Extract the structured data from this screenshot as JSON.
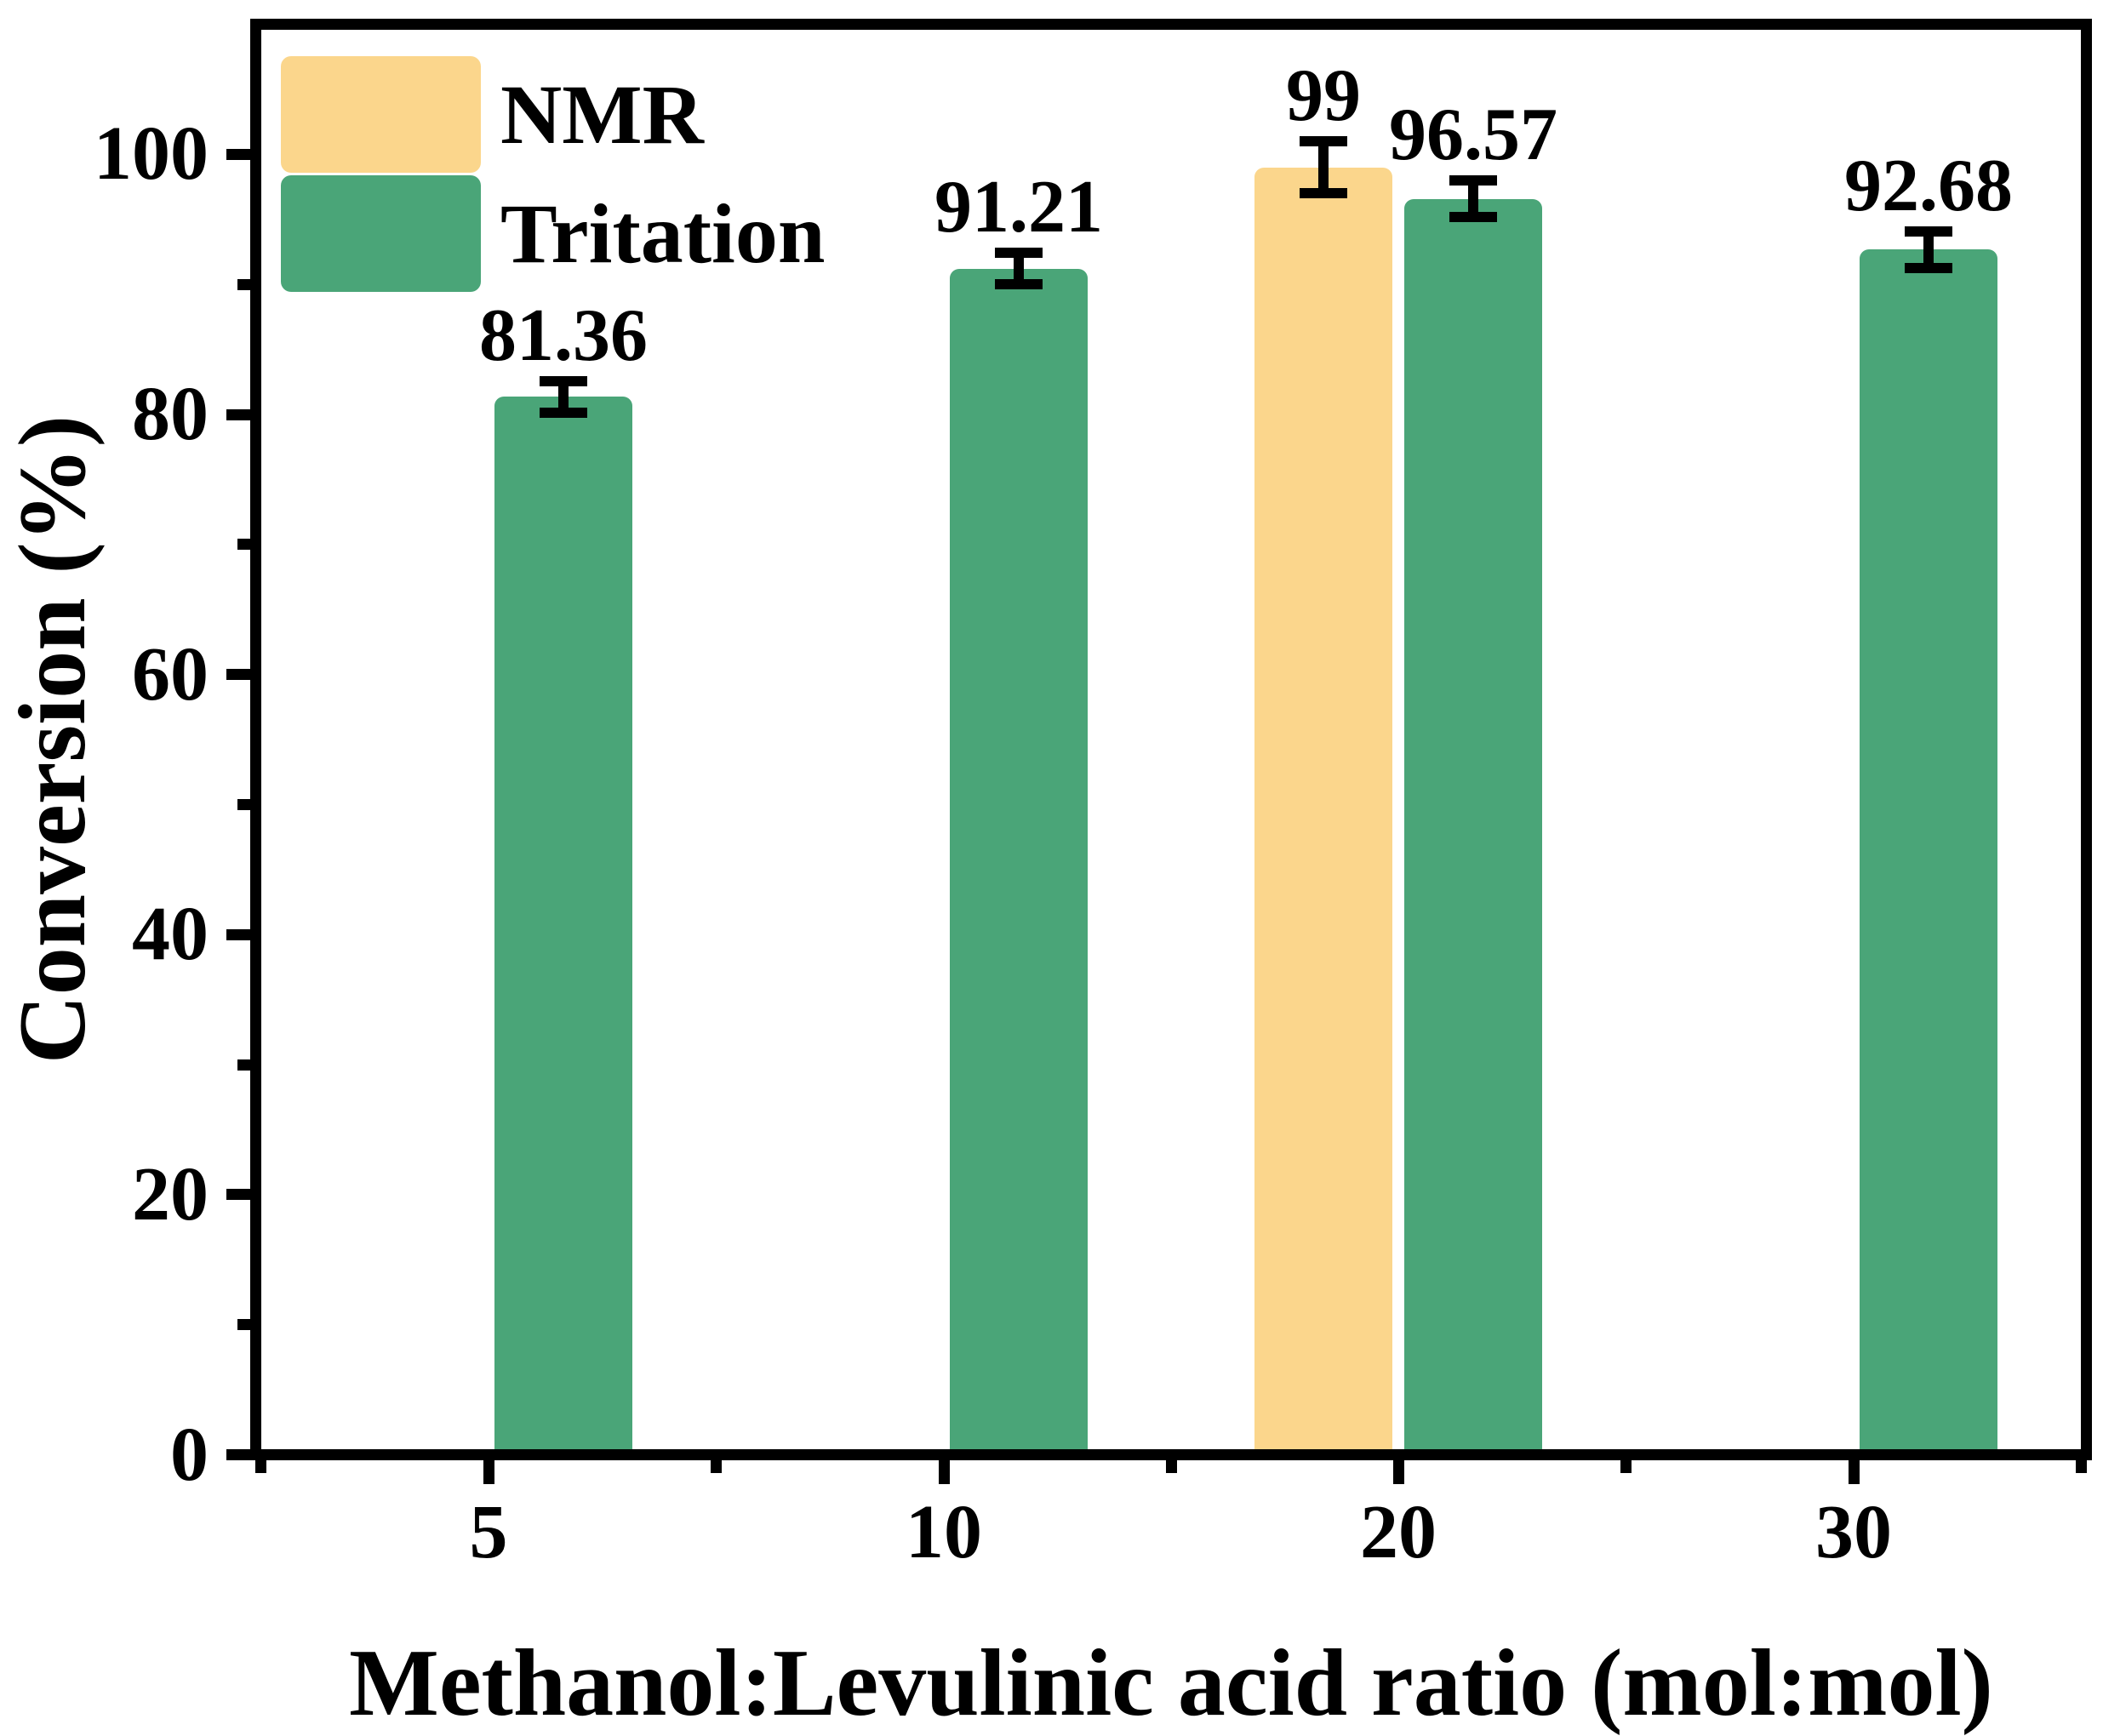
{
  "chart_data": {
    "type": "bar",
    "title": "",
    "xlabel": "Methanol:Levulinic acid ratio (mol:mol)",
    "ylabel": "Conversion (%)",
    "ylim": [
      0,
      110
    ],
    "grid": false,
    "legend_position": "upper-left",
    "background": "#FFFFFF",
    "text_color": "#000000",
    "error_bar_color": "#000000",
    "categories": [
      "5",
      "10",
      "20",
      "30"
    ],
    "y_major_ticks": [
      0,
      20,
      40,
      60,
      80,
      100
    ],
    "y_minor_ticks": [
      10,
      30,
      50,
      70,
      90
    ],
    "series": [
      {
        "name": "NMR",
        "color": "#FBD68C",
        "values": [
          null,
          null,
          99,
          null
        ],
        "errors": [
          null,
          null,
          2.0,
          null
        ],
        "labels": [
          "",
          "",
          "99",
          ""
        ]
      },
      {
        "name": "Tritation",
        "color": "#4AA578",
        "values": [
          81.36,
          91.21,
          96.57,
          92.68
        ],
        "errors": [
          1.2,
          1.2,
          1.4,
          1.4
        ],
        "labels": [
          "81.36",
          "91.21",
          "96.57",
          "92.68"
        ]
      }
    ]
  }
}
